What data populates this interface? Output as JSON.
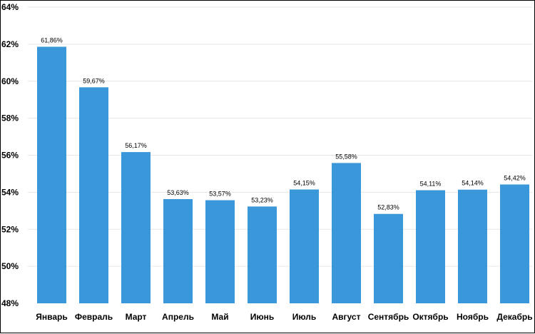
{
  "chart_data": {
    "type": "bar",
    "title": "",
    "xlabel": "",
    "ylabel": "",
    "ylim": [
      48,
      64
    ],
    "yticks": [
      48,
      50,
      52,
      54,
      56,
      58,
      60,
      62,
      64
    ],
    "ytick_labels": [
      "48%",
      "50%",
      "52%",
      "54%",
      "56%",
      "58%",
      "60%",
      "62%",
      "64%"
    ],
    "grid": true,
    "legend": "none",
    "categories": [
      "Январь",
      "Февраль",
      "Март",
      "Апрель",
      "Май",
      "Июнь",
      "Июль",
      "Август",
      "Сентябрь",
      "Октябрь",
      "Ноябрь",
      "Декабрь"
    ],
    "values": [
      61.86,
      59.67,
      56.17,
      53.63,
      53.57,
      53.23,
      54.15,
      55.58,
      52.83,
      54.11,
      54.14,
      54.42
    ],
    "data_labels": [
      "61,86%",
      "59,67%",
      "56,17%",
      "53,63%",
      "53,57%",
      "53,23%",
      "54,15%",
      "55,58%",
      "52,83%",
      "54,11%",
      "54,14%",
      "54,42%"
    ],
    "colors": {
      "bar": "#3a98da",
      "grid": "#e6e6e6",
      "text": "#000000"
    }
  }
}
